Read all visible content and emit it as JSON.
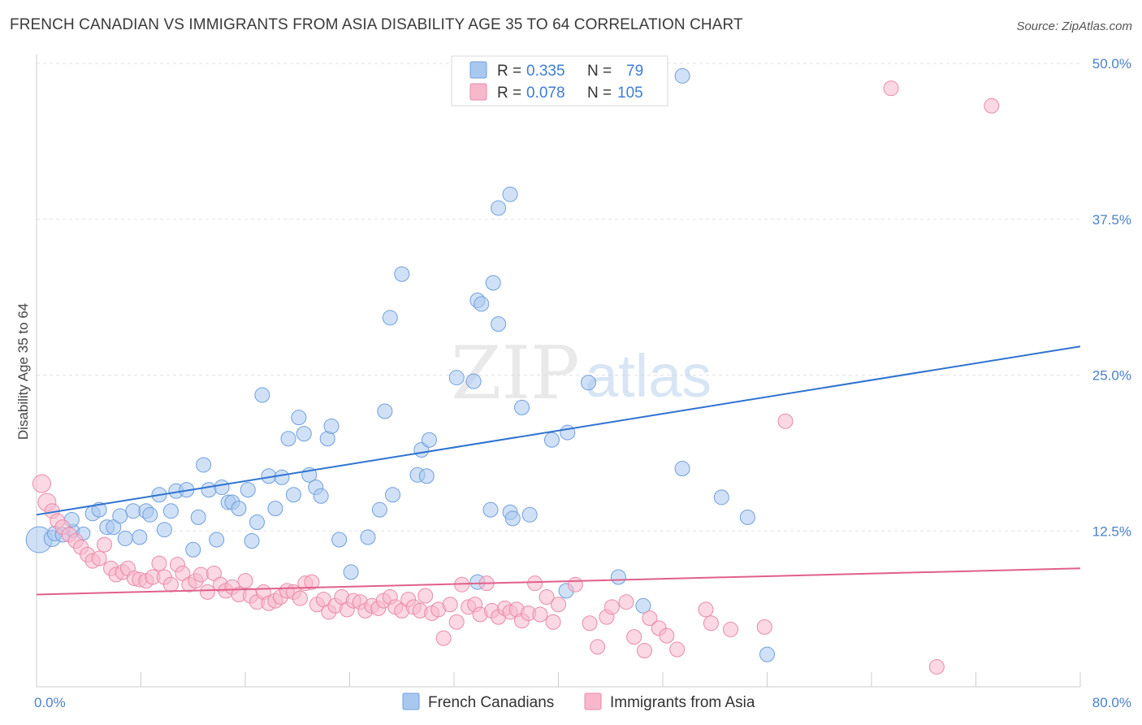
{
  "title": "FRENCH CANADIAN VS IMMIGRANTS FROM ASIA DISABILITY AGE 35 TO 64 CORRELATION CHART",
  "source": "Source: ZipAtlas.com",
  "watermark": {
    "zip": "ZIP",
    "atlas": "atlas"
  },
  "chart_data": {
    "type": "scatter",
    "ylabel": "Disability Age 35 to 64",
    "xlabel": "",
    "xlim": [
      0,
      80
    ],
    "ylim": [
      0,
      50
    ],
    "x_tick_labels": [
      "0.0%",
      "80.0%"
    ],
    "y_ticks": [
      12.5,
      25.0,
      37.5,
      50.0
    ],
    "y_tick_labels": [
      "12.5%",
      "25.0%",
      "37.5%",
      "50.0%"
    ],
    "grid": true,
    "legend": {
      "placement": "top-center",
      "rows": [
        {
          "r_label": "R =",
          "r_value": "0.335",
          "n_label": "N =",
          "n_value": "79",
          "color": "#a9c8f0"
        },
        {
          "r_label": "R =",
          "r_value": "0.078",
          "n_label": "N =",
          "n_value": "105",
          "color": "#f7b8cc"
        }
      ]
    },
    "series": [
      {
        "name": "French Canadians",
        "color": "#a9c8f0",
        "stroke": "#6f9fdc",
        "trend": {
          "x": [
            0,
            80
          ],
          "y": [
            13.8,
            27.3
          ],
          "color": "#2f73d0"
        },
        "points": [
          [
            0.2,
            11.8,
            16
          ],
          [
            1.2,
            11.9,
            10
          ],
          [
            1.4,
            12.3,
            9
          ],
          [
            2.0,
            12.2,
            9
          ],
          [
            2.8,
            12.5,
            8
          ],
          [
            2.7,
            13.4,
            9
          ],
          [
            3.6,
            12.3,
            8
          ],
          [
            4.3,
            13.9,
            9
          ],
          [
            4.8,
            14.2,
            9
          ],
          [
            5.4,
            12.8,
            9
          ],
          [
            5.9,
            12.8,
            9
          ],
          [
            6.4,
            13.7,
            9
          ],
          [
            6.8,
            11.9,
            9
          ],
          [
            7.4,
            14.1,
            9
          ],
          [
            7.9,
            12.0,
            9
          ],
          [
            8.4,
            14.1,
            9
          ],
          [
            8.7,
            13.8,
            9
          ],
          [
            9.4,
            15.4,
            9
          ],
          [
            9.8,
            12.6,
            9
          ],
          [
            10.3,
            14.1,
            9
          ],
          [
            10.7,
            15.7,
            9
          ],
          [
            11.5,
            15.8,
            9
          ],
          [
            12.0,
            11.0,
            9
          ],
          [
            12.4,
            13.6,
            9
          ],
          [
            12.8,
            17.8,
            9
          ],
          [
            13.2,
            15.8,
            9
          ],
          [
            13.8,
            11.8,
            9
          ],
          [
            14.2,
            16.0,
            9
          ],
          [
            14.7,
            14.8,
            9
          ],
          [
            15.0,
            14.8,
            9
          ],
          [
            15.5,
            14.3,
            9
          ],
          [
            16.2,
            15.8,
            9
          ],
          [
            16.5,
            11.7,
            9
          ],
          [
            16.9,
            13.2,
            9
          ],
          [
            17.3,
            23.4,
            9
          ],
          [
            17.8,
            16.9,
            9
          ],
          [
            18.3,
            14.3,
            9
          ],
          [
            18.8,
            16.8,
            9
          ],
          [
            19.3,
            19.9,
            9
          ],
          [
            19.7,
            15.4,
            9
          ],
          [
            20.1,
            21.6,
            9
          ],
          [
            20.5,
            20.3,
            9
          ],
          [
            20.9,
            17.0,
            9
          ],
          [
            21.4,
            16.0,
            9
          ],
          [
            21.8,
            15.3,
            9
          ],
          [
            22.3,
            19.9,
            9
          ],
          [
            22.6,
            20.9,
            9
          ],
          [
            23.2,
            11.8,
            9
          ],
          [
            24.1,
            9.2,
            9
          ],
          [
            25.4,
            12.0,
            9
          ],
          [
            26.3,
            14.2,
            9
          ],
          [
            26.7,
            22.1,
            9
          ],
          [
            27.3,
            15.4,
            9
          ],
          [
            29.2,
            17.0,
            9
          ],
          [
            29.5,
            19.0,
            9
          ],
          [
            29.9,
            16.9,
            9
          ],
          [
            30.1,
            19.8,
            9
          ],
          [
            27.1,
            29.6,
            9
          ],
          [
            33.8,
            31.0,
            9
          ],
          [
            34.1,
            30.7,
            9
          ],
          [
            33.5,
            24.5,
            9
          ],
          [
            32.2,
            24.8,
            9
          ],
          [
            35.0,
            32.4,
            9
          ],
          [
            35.4,
            29.1,
            9
          ],
          [
            33.8,
            8.4,
            9
          ],
          [
            34.8,
            14.2,
            9
          ],
          [
            36.3,
            14.0,
            9
          ],
          [
            36.5,
            13.5,
            9
          ],
          [
            37.2,
            22.4,
            9
          ],
          [
            37.8,
            13.8,
            9
          ],
          [
            39.5,
            19.8,
            9
          ],
          [
            40.6,
            7.7,
            9
          ],
          [
            40.7,
            20.4,
            9
          ],
          [
            42.3,
            24.4,
            9
          ],
          [
            44.6,
            8.8,
            9
          ],
          [
            46.5,
            6.5,
            9
          ],
          [
            49.5,
            17.5,
            9
          ],
          [
            52.5,
            15.2,
            9
          ],
          [
            54.5,
            13.6,
            9
          ],
          [
            56.0,
            2.6,
            9
          ],
          [
            49.5,
            49.0,
            9
          ],
          [
            28.0,
            33.1,
            9
          ],
          [
            36.3,
            39.5,
            9
          ],
          [
            35.4,
            38.4,
            9
          ]
        ]
      },
      {
        "name": "Immigrants from Asia",
        "color": "#f7b8cc",
        "stroke": "#e88aa8",
        "trend": {
          "x": [
            0,
            80
          ],
          "y": [
            7.4,
            9.5
          ],
          "color": "#e0608a"
        },
        "points": [
          [
            0.4,
            16.3,
            11
          ],
          [
            0.8,
            14.8,
            11
          ],
          [
            1.2,
            14.1,
            9
          ],
          [
            1.6,
            13.3,
            9
          ],
          [
            2.0,
            12.8,
            9
          ],
          [
            2.5,
            12.2,
            9
          ],
          [
            3.0,
            11.7,
            9
          ],
          [
            3.4,
            11.2,
            9
          ],
          [
            3.9,
            10.6,
            9
          ],
          [
            4.3,
            10.1,
            9
          ],
          [
            4.8,
            10.3,
            9
          ],
          [
            5.2,
            11.4,
            9
          ],
          [
            5.7,
            9.5,
            9
          ],
          [
            6.1,
            9.0,
            9
          ],
          [
            6.6,
            9.2,
            9
          ],
          [
            7.0,
            9.5,
            9
          ],
          [
            7.5,
            8.7,
            9
          ],
          [
            7.9,
            8.6,
            9
          ],
          [
            8.4,
            8.5,
            9
          ],
          [
            8.9,
            8.8,
            9
          ],
          [
            9.4,
            9.9,
            9
          ],
          [
            9.8,
            8.8,
            9
          ],
          [
            10.3,
            8.2,
            9
          ],
          [
            10.8,
            9.8,
            9
          ],
          [
            11.2,
            9.1,
            9
          ],
          [
            11.7,
            8.2,
            9
          ],
          [
            12.2,
            8.5,
            9
          ],
          [
            12.6,
            9.0,
            9
          ],
          [
            13.1,
            7.6,
            9
          ],
          [
            13.6,
            9.1,
            9
          ],
          [
            14.1,
            8.2,
            9
          ],
          [
            14.5,
            7.7,
            9
          ],
          [
            15.0,
            8.0,
            9
          ],
          [
            15.5,
            7.4,
            9
          ],
          [
            16.0,
            8.5,
            9
          ],
          [
            16.4,
            7.3,
            9
          ],
          [
            16.9,
            6.8,
            9
          ],
          [
            17.4,
            7.6,
            9
          ],
          [
            17.8,
            6.7,
            9
          ],
          [
            18.3,
            6.9,
            9
          ],
          [
            18.7,
            7.2,
            9
          ],
          [
            19.2,
            7.7,
            9
          ],
          [
            19.7,
            7.6,
            9
          ],
          [
            20.2,
            7.1,
            9
          ],
          [
            20.6,
            8.3,
            9
          ],
          [
            21.1,
            8.4,
            9
          ],
          [
            21.5,
            6.6,
            9
          ],
          [
            22.0,
            7.0,
            9
          ],
          [
            22.4,
            6.0,
            9
          ],
          [
            22.9,
            6.5,
            9
          ],
          [
            23.4,
            7.2,
            9
          ],
          [
            23.8,
            6.2,
            9
          ],
          [
            24.3,
            6.9,
            9
          ],
          [
            24.8,
            6.8,
            9
          ],
          [
            25.2,
            6.1,
            9
          ],
          [
            25.7,
            6.5,
            9
          ],
          [
            26.2,
            6.3,
            9
          ],
          [
            26.6,
            6.9,
            9
          ],
          [
            27.1,
            7.2,
            9
          ],
          [
            27.5,
            6.4,
            9
          ],
          [
            28.0,
            6.1,
            9
          ],
          [
            28.5,
            7.0,
            9
          ],
          [
            28.9,
            6.4,
            9
          ],
          [
            29.4,
            6.1,
            9
          ],
          [
            29.8,
            7.3,
            9
          ],
          [
            30.3,
            5.9,
            9
          ],
          [
            30.8,
            6.2,
            9
          ],
          [
            31.2,
            3.9,
            9
          ],
          [
            31.7,
            6.6,
            9
          ],
          [
            32.2,
            5.2,
            9
          ],
          [
            32.6,
            8.2,
            9
          ],
          [
            33.1,
            6.4,
            9
          ],
          [
            33.6,
            6.6,
            9
          ],
          [
            34.0,
            5.8,
            9
          ],
          [
            34.5,
            8.3,
            9
          ],
          [
            34.9,
            6.1,
            9
          ],
          [
            35.4,
            5.6,
            9
          ],
          [
            35.9,
            6.3,
            9
          ],
          [
            36.3,
            6.0,
            9
          ],
          [
            36.8,
            6.2,
            9
          ],
          [
            37.2,
            5.3,
            9
          ],
          [
            37.7,
            5.9,
            9
          ],
          [
            38.2,
            8.3,
            9
          ],
          [
            38.6,
            5.8,
            9
          ],
          [
            39.1,
            7.2,
            9
          ],
          [
            39.6,
            5.2,
            9
          ],
          [
            40.0,
            6.6,
            9
          ],
          [
            41.3,
            8.2,
            9
          ],
          [
            42.4,
            5.1,
            9
          ],
          [
            43.0,
            3.2,
            9
          ],
          [
            43.7,
            5.6,
            9
          ],
          [
            44.1,
            6.4,
            9
          ],
          [
            45.2,
            6.8,
            9
          ],
          [
            45.8,
            4.0,
            9
          ],
          [
            46.6,
            2.9,
            9
          ],
          [
            47.0,
            5.5,
            9
          ],
          [
            47.7,
            4.7,
            9
          ],
          [
            48.3,
            4.1,
            9
          ],
          [
            49.1,
            3.0,
            9
          ],
          [
            51.3,
            6.2,
            9
          ],
          [
            51.7,
            5.1,
            9
          ],
          [
            53.2,
            4.6,
            9
          ],
          [
            55.8,
            4.8,
            9
          ],
          [
            57.4,
            21.3,
            9
          ],
          [
            65.5,
            48.0,
            9
          ],
          [
            73.2,
            46.6,
            9
          ],
          [
            69.0,
            1.6,
            9
          ]
        ]
      }
    ]
  }
}
